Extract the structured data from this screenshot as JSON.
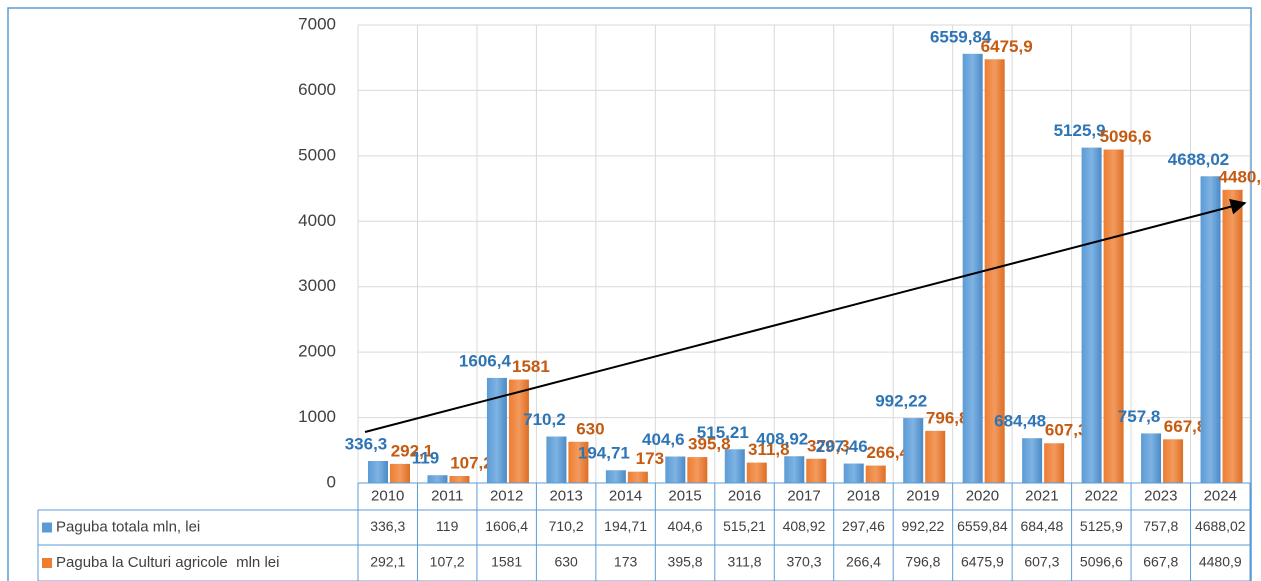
{
  "chart_data": {
    "type": "bar",
    "categories": [
      "2010",
      "2011",
      "2012",
      "2013",
      "2014",
      "2015",
      "2016",
      "2017",
      "2018",
      "2019",
      "2020",
      "2021",
      "2022",
      "2023",
      "2024"
    ],
    "series": [
      {
        "name": "Paguba totala mln, lei",
        "color": "#5b9bd5",
        "label_color": "#2e75b6",
        "values": [
          336.3,
          119,
          1606.4,
          710.2,
          194.71,
          404.6,
          515.21,
          408.92,
          297.46,
          992.22,
          6559.84,
          684.48,
          5125.9,
          757.8,
          4688.02
        ],
        "value_labels": [
          "336,3",
          "119",
          "1606,4",
          "710,2",
          "194,71",
          "404,6",
          "515,21",
          "408,92",
          "297,46",
          "992,22",
          "6559,84",
          "684,48",
          "5125,9",
          "757,8",
          "4688,02"
        ]
      },
      {
        "name": "Paguba la Culturi agricole  mln lei",
        "color": "#ed7d31",
        "label_color": "#c55a11",
        "values": [
          292.1,
          107.2,
          1581,
          630,
          173,
          395.8,
          311.8,
          370.3,
          266.4,
          796.8,
          6475.9,
          607.3,
          5096.6,
          667.8,
          4480.9
        ],
        "value_labels": [
          "292,1",
          "107,2",
          "1581",
          "630",
          "173",
          "395,8",
          "311,8",
          "370,3",
          "266,4",
          "796,8",
          "6475,9",
          "607,3",
          "5096,6",
          "667,8",
          "4480,9"
        ]
      }
    ],
    "ylim": [
      0,
      7000
    ],
    "yticks": [
      0,
      1000,
      2000,
      3000,
      4000,
      5000,
      6000,
      7000
    ],
    "grid": true,
    "data_table": true
  }
}
